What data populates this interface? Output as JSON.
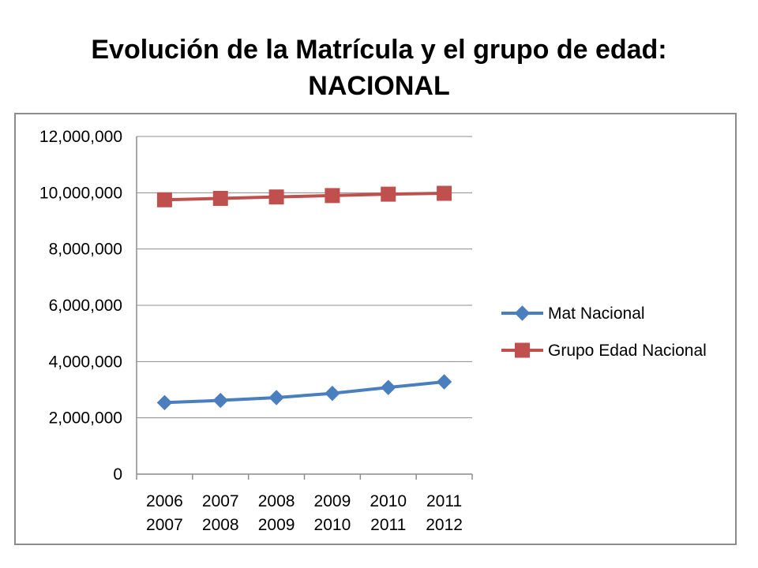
{
  "slide": {
    "title_line1": "Evolución de la Matrícula y el grupo de edad:",
    "title_line2": "NACIONAL"
  },
  "chart_data": {
    "type": "line",
    "categories": [
      [
        "2006",
        "2007"
      ],
      [
        "2007",
        "2008"
      ],
      [
        "2008",
        "2009"
      ],
      [
        "2009",
        "2010"
      ],
      [
        "2010",
        "2011"
      ],
      [
        "2011",
        "2012"
      ]
    ],
    "series": [
      {
        "name": "Mat Nacional",
        "color": "#4a7ebf",
        "marker": "diamond",
        "values": [
          2540000,
          2620000,
          2720000,
          2870000,
          3080000,
          3280000
        ]
      },
      {
        "name": "Grupo Edad Nacional",
        "color": "#c0504d",
        "marker": "square",
        "values": [
          9750000,
          9800000,
          9850000,
          9900000,
          9950000,
          9980000
        ]
      }
    ],
    "yticks": [
      "0",
      "2,000,000",
      "4,000,000",
      "6,000,000",
      "8,000,000",
      "10,000,000",
      "12,000,000"
    ],
    "ylim": [
      0,
      12000000
    ],
    "grid": true,
    "legend_position": "right"
  }
}
